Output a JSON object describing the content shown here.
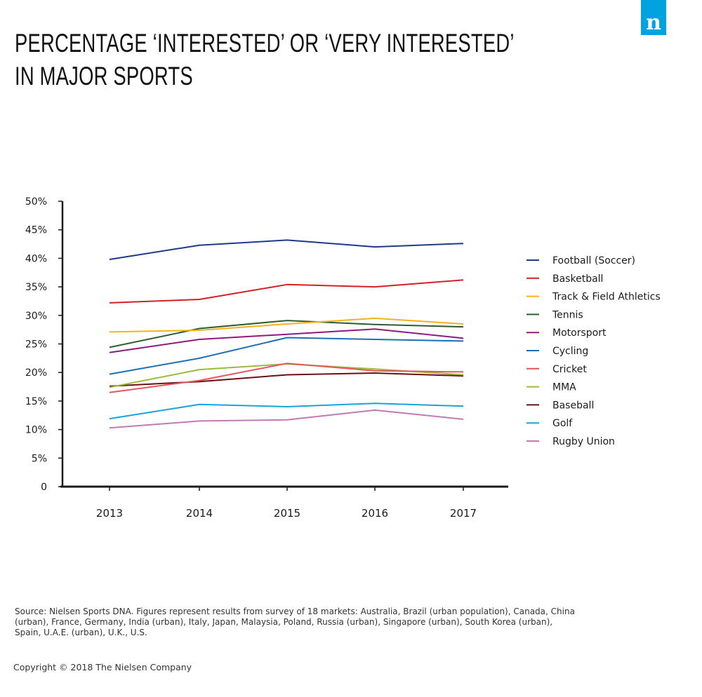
{
  "header": {
    "title_line1": "Percentage ‘interested’ or ‘very interested’",
    "title_line2": "in major sports",
    "logo_text": "n",
    "logo_color": "#00a3e0"
  },
  "chart_data": {
    "type": "line",
    "x": [
      "2013",
      "2014",
      "2015",
      "2016",
      "2017"
    ],
    "ylim": [
      0,
      50
    ],
    "yticks": [
      "0",
      "5%",
      "10%",
      "15%",
      "20%",
      "25%",
      "30%",
      "35%",
      "40%",
      "45%",
      "50%"
    ],
    "ytick_values": [
      0,
      5,
      10,
      15,
      20,
      25,
      30,
      35,
      40,
      45,
      50
    ],
    "grid": false,
    "legend_position": "right",
    "series": [
      {
        "name": "Football (Soccer)",
        "color": "#1f3a8a",
        "values": [
          39.8,
          42.3,
          43.2,
          42.0,
          42.6
        ]
      },
      {
        "name": "Basketball",
        "color": "#d42127",
        "values": [
          32.2,
          32.8,
          35.4,
          35.0,
          36.2
        ]
      },
      {
        "name": "Track & Field Athletics",
        "color": "#f5b21e",
        "values": [
          27.1,
          27.4,
          28.5,
          29.5,
          28.5
        ]
      },
      {
        "name": "Tennis",
        "color": "#2e5e2e",
        "values": [
          24.4,
          27.7,
          29.1,
          28.4,
          28.0
        ]
      },
      {
        "name": "Motorsport",
        "color": "#8e1a7f",
        "values": [
          23.5,
          25.8,
          26.7,
          27.6,
          26.0
        ]
      },
      {
        "name": "Cycling",
        "color": "#1d6fb5",
        "values": [
          19.7,
          22.5,
          26.1,
          25.8,
          25.5
        ]
      },
      {
        "name": "Cricket",
        "color": "#e3575b",
        "values": [
          16.5,
          18.6,
          21.6,
          20.3,
          20.1
        ]
      },
      {
        "name": "MMA",
        "color": "#9bbb3b",
        "values": [
          17.4,
          20.5,
          21.5,
          20.6,
          19.6
        ]
      },
      {
        "name": "Baseball",
        "color": "#6b1111",
        "values": [
          17.6,
          18.4,
          19.6,
          19.9,
          19.4
        ]
      },
      {
        "name": "Golf",
        "color": "#18a3dd",
        "values": [
          11.9,
          14.4,
          14.0,
          14.6,
          14.1
        ]
      },
      {
        "name": "Rugby Union",
        "color": "#c27ab4",
        "values": [
          10.3,
          11.5,
          11.7,
          13.4,
          11.8
        ]
      }
    ]
  },
  "footer": {
    "source": "Source: Nielsen Sports DNA. Figures represent results from survey of 18 markets: Australia, Brazil (urban population), Canada, China (urban), France, Germany, India (urban), Italy, Japan, Malaysia, Poland, Russia (urban), Singapore (urban), South Korea (urban), Spain, U.A.E. (urban), U.K., U.S.",
    "copyright": "Copyright © 2018 The Nielsen Company"
  }
}
